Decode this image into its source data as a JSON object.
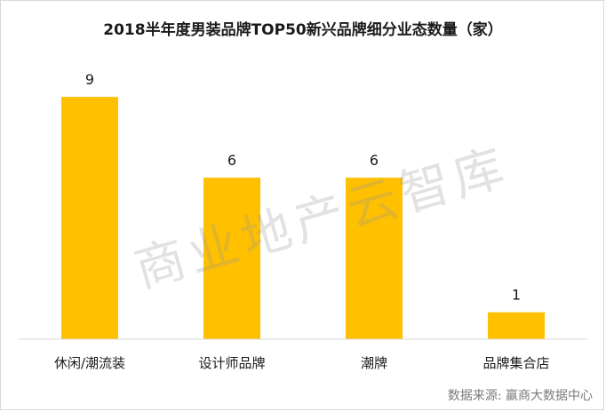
{
  "chart_data": {
    "type": "bar",
    "title": "2018半年度男装品牌TOP50新兴品牌细分业态数量（家）",
    "categories": [
      "休闲/潮流装",
      "设计师品牌",
      "潮牌",
      "品牌集合店"
    ],
    "values": [
      9,
      6,
      6,
      1
    ],
    "xlabel": "",
    "ylabel": "",
    "ylim": [
      0,
      9.4
    ],
    "grid": false,
    "legend": "none",
    "bar_color": "#FFC000",
    "axis_color": "#d9d9d9"
  },
  "watermark": "商业地产云智库",
  "source": {
    "label": "数据来源:",
    "value": "赢商大数据中心"
  }
}
